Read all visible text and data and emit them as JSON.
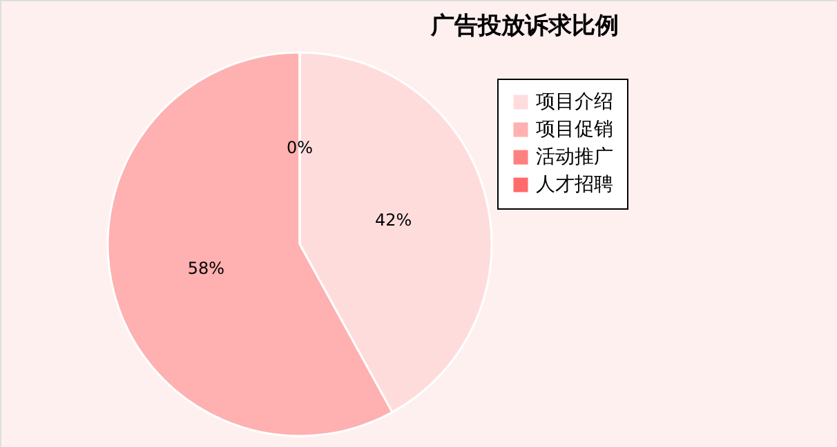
{
  "chart_data": {
    "type": "pie",
    "title": "广告投放诉求比例",
    "categories": [
      "项目介绍",
      "项目促销",
      "活动推广",
      "人才招聘"
    ],
    "values": [
      42,
      58,
      0,
      0
    ],
    "colors": [
      "#ffdcdc",
      "#ffb0b0",
      "#ff8080",
      "#ff6a6a"
    ],
    "value_labels": [
      "42%",
      "58%",
      "0%",
      null
    ],
    "legend": "right"
  }
}
